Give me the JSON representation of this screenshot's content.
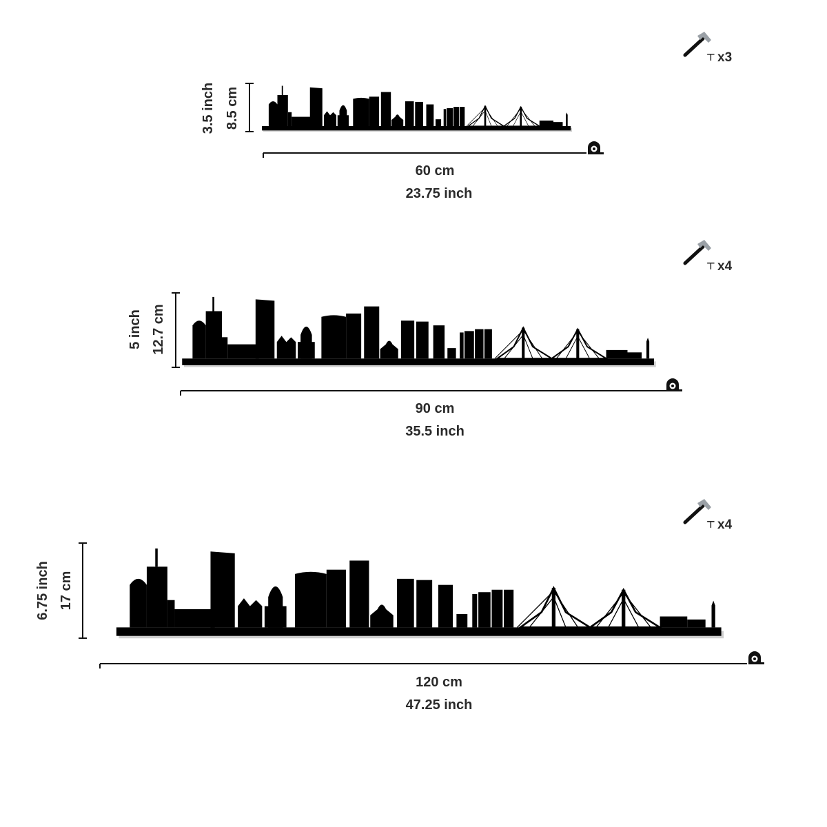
{
  "variants": [
    {
      "hammer_count": "x3",
      "height_inch": "3.5 inch",
      "height_cm": "8.5 cm",
      "width_cm": "60 cm",
      "width_inch": "23.75 inch"
    },
    {
      "hammer_count": "x4",
      "height_inch": "5 inch",
      "height_cm": "12.7 cm",
      "width_cm": "90 cm",
      "width_inch": "35.5 inch"
    },
    {
      "hammer_count": "x4",
      "height_inch": "6.75 inch",
      "height_cm": "17 cm",
      "width_cm": "120 cm",
      "width_inch": "47.25 inch"
    }
  ],
  "icons": {
    "hammer": "hammer-icon",
    "nail": "nail-icon",
    "tape": "tape-measure-icon"
  },
  "colors": {
    "silhouette": "#000000",
    "text": "#2a2a2a",
    "hammer_head": "#9aa0a6",
    "background": "#ffffff"
  }
}
